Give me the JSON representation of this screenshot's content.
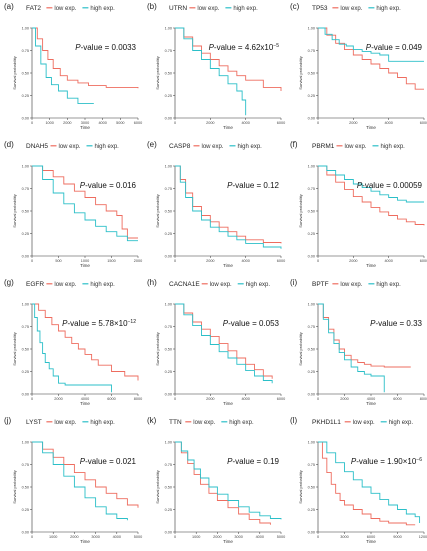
{
  "legend": {
    "low": "low exp.",
    "high": "high exp."
  },
  "colors": {
    "low": "#ee6c5f",
    "high": "#2bbfc8",
    "axis": "#333333"
  },
  "chart_data": [
    {
      "type": "line",
      "panel": "(a)",
      "gene": "FAT2",
      "pvalue": {
        "label": "P",
        "text": "-value = 0.0033"
      },
      "xlabel": "Time",
      "ylabel": "Survival probability",
      "xlim": [
        0,
        6000
      ],
      "ylim": [
        0,
        1
      ],
      "xticks": [
        "0",
        "1000",
        "2000",
        "3000",
        "4000",
        "5000",
        "6000"
      ],
      "yticks": [
        "0.00",
        "0.25",
        "0.50",
        "0.75",
        "1.00"
      ],
      "series": [
        {
          "group": "low",
          "x": [
            0,
            300,
            600,
            900,
            1200,
            1600,
            2000,
            2600,
            3200,
            4200,
            6000
          ],
          "y": [
            1,
            0.88,
            0.75,
            0.65,
            0.55,
            0.47,
            0.42,
            0.39,
            0.36,
            0.34,
            0.33
          ]
        },
        {
          "group": "high",
          "x": [
            0,
            200,
            500,
            800,
            1100,
            1500,
            2000,
            2600,
            3500
          ],
          "y": [
            1,
            0.8,
            0.6,
            0.45,
            0.37,
            0.3,
            0.22,
            0.16,
            0.16
          ]
        }
      ]
    },
    {
      "type": "line",
      "panel": "(b)",
      "gene": "UTRN",
      "pvalue": {
        "label": "P",
        "text": "-value = 4.62x10",
        "sup": "−5"
      },
      "xlabel": "Time",
      "ylabel": "Survival probability",
      "xlim": [
        0,
        6000
      ],
      "ylim": [
        0,
        1
      ],
      "xticks": [
        "0",
        "2000",
        "4000",
        "6000"
      ],
      "yticks": [
        "0.00",
        "0.25",
        "0.50",
        "0.75",
        "1.00"
      ],
      "series": [
        {
          "group": "low",
          "x": [
            0,
            500,
            1000,
            1500,
            2000,
            2500,
            3000,
            3500,
            4000,
            5000,
            6000
          ],
          "y": [
            1,
            0.9,
            0.8,
            0.72,
            0.65,
            0.58,
            0.52,
            0.47,
            0.42,
            0.34,
            0.3
          ]
        },
        {
          "group": "high",
          "x": [
            0,
            500,
            1000,
            1500,
            2000,
            2500,
            3000,
            3500,
            3800,
            4000,
            4000
          ],
          "y": [
            1,
            0.88,
            0.75,
            0.65,
            0.55,
            0.47,
            0.38,
            0.3,
            0.2,
            0.15,
            0.03
          ]
        }
      ]
    },
    {
      "type": "line",
      "panel": "(c)",
      "gene": "TP53",
      "pvalue": {
        "label": "P",
        "text": "-value = 0.049"
      },
      "xlabel": "Time",
      "ylabel": "Survival probability",
      "xlim": [
        0,
        6000
      ],
      "ylim": [
        0,
        1
      ],
      "xticks": [
        "0",
        "2000",
        "4000",
        "6000"
      ],
      "yticks": [
        "0.00",
        "0.25",
        "0.50",
        "0.75",
        "1.00"
      ],
      "series": [
        {
          "group": "low",
          "x": [
            0,
            500,
            1000,
            1500,
            2000,
            2500,
            3000,
            3500,
            4000,
            4500,
            5000,
            5500,
            6000
          ],
          "y": [
            1,
            0.92,
            0.83,
            0.76,
            0.7,
            0.65,
            0.6,
            0.55,
            0.5,
            0.45,
            0.38,
            0.32,
            0.32
          ]
        },
        {
          "group": "high",
          "x": [
            0,
            400,
            800,
            1200,
            1600,
            2000,
            2500,
            3000,
            3500,
            4000,
            6000
          ],
          "y": [
            1,
            0.93,
            0.87,
            0.82,
            0.8,
            0.76,
            0.74,
            0.72,
            0.7,
            0.63,
            0.63
          ]
        }
      ]
    },
    {
      "type": "line",
      "panel": "(d)",
      "gene": "DNAH5",
      "pvalue": {
        "label": "P",
        "text": "-value = 0.016"
      },
      "xlabel": "Time",
      "ylabel": "Survival probability",
      "xlim": [
        0,
        2000
      ],
      "ylim": [
        0,
        1
      ],
      "xticks": [
        "0",
        "500",
        "1000",
        "1500",
        "2000"
      ],
      "yticks": [
        "0.00",
        "0.25",
        "0.50",
        "0.75",
        "1.00"
      ],
      "series": [
        {
          "group": "low",
          "x": [
            0,
            200,
            400,
            600,
            800,
            1000,
            1200,
            1400,
            1600,
            1700,
            1800,
            2000
          ],
          "y": [
            1,
            0.95,
            0.88,
            0.8,
            0.72,
            0.65,
            0.57,
            0.5,
            0.45,
            0.3,
            0.2,
            0.2
          ]
        },
        {
          "group": "high",
          "x": [
            0,
            200,
            400,
            600,
            800,
            1000,
            1200,
            1400,
            1600,
            1800,
            2000
          ],
          "y": [
            1,
            0.85,
            0.7,
            0.58,
            0.48,
            0.4,
            0.33,
            0.27,
            0.22,
            0.17,
            0.17
          ]
        }
      ]
    },
    {
      "type": "line",
      "panel": "(e)",
      "gene": "CASP8",
      "pvalue": {
        "label": "P",
        "text": "-value = 0.12"
      },
      "xlabel": "Time",
      "ylabel": "Survival probability",
      "xlim": [
        0,
        6000
      ],
      "ylim": [
        0,
        1
      ],
      "xticks": [
        "0",
        "2000",
        "4000",
        "6000"
      ],
      "yticks": [
        "0.00",
        "0.25",
        "0.50",
        "0.75",
        "1.00"
      ],
      "series": [
        {
          "group": "low",
          "x": [
            0,
            300,
            600,
            1000,
            1500,
            2000,
            2500,
            3000,
            3500,
            4000,
            5000,
            6000
          ],
          "y": [
            1,
            0.85,
            0.7,
            0.55,
            0.45,
            0.38,
            0.32,
            0.27,
            0.22,
            0.18,
            0.15,
            0.14
          ]
        },
        {
          "group": "high",
          "x": [
            0,
            300,
            600,
            1000,
            1500,
            2000,
            2500,
            3000,
            3500,
            4000,
            5000,
            6000
          ],
          "y": [
            1,
            0.82,
            0.65,
            0.5,
            0.4,
            0.32,
            0.27,
            0.22,
            0.18,
            0.14,
            0.1,
            0.08
          ]
        }
      ]
    },
    {
      "type": "line",
      "panel": "(f)",
      "gene": "PBRM1",
      "pvalue": {
        "label": "P",
        "text": "-value = 0.00059"
      },
      "xlabel": "Time",
      "ylabel": "Survival probability",
      "xlim": [
        0,
        6000
      ],
      "ylim": [
        0,
        1
      ],
      "xticks": [
        "0",
        "2000",
        "4000",
        "6000"
      ],
      "yticks": [
        "0.00",
        "0.25",
        "0.50",
        "0.75",
        "1.00"
      ],
      "series": [
        {
          "group": "low",
          "x": [
            0,
            500,
            1000,
            1500,
            2000,
            2500,
            3000,
            3500,
            4000,
            4500,
            5000,
            5500,
            6000
          ],
          "y": [
            1,
            0.9,
            0.82,
            0.74,
            0.66,
            0.6,
            0.54,
            0.49,
            0.45,
            0.41,
            0.38,
            0.35,
            0.34
          ]
        },
        {
          "group": "high",
          "x": [
            0,
            500,
            1000,
            1500,
            2000,
            2500,
            3000,
            3500,
            4000,
            4500,
            5000,
            6000
          ],
          "y": [
            1,
            0.95,
            0.9,
            0.85,
            0.8,
            0.76,
            0.72,
            0.68,
            0.65,
            0.62,
            0.6,
            0.6
          ]
        }
      ]
    },
    {
      "type": "line",
      "panel": "(g)",
      "gene": "EGFR",
      "pvalue": {
        "label": "P",
        "text": "-value = 5.78×10",
        "sup": "−12"
      },
      "xlabel": "Time",
      "ylabel": "Survival probability",
      "xlim": [
        0,
        8000
      ],
      "ylim": [
        0,
        1
      ],
      "xticks": [
        "0",
        "2000",
        "4000",
        "6000",
        "8000"
      ],
      "yticks": [
        "0.00",
        "0.25",
        "0.50",
        "0.75",
        "1.00"
      ],
      "series": [
        {
          "group": "low",
          "x": [
            0,
            500,
            1000,
            1500,
            2000,
            2500,
            3000,
            3500,
            4000,
            4500,
            5000,
            6000,
            7000,
            8000
          ],
          "y": [
            1,
            0.93,
            0.85,
            0.77,
            0.7,
            0.63,
            0.56,
            0.5,
            0.44,
            0.38,
            0.32,
            0.25,
            0.2,
            0.15
          ]
        },
        {
          "group": "high",
          "x": [
            0,
            200,
            400,
            600,
            800,
            1000,
            1300,
            1600,
            2000,
            2500,
            6000,
            6000
          ],
          "y": [
            1,
            0.85,
            0.7,
            0.57,
            0.45,
            0.35,
            0.28,
            0.2,
            0.12,
            0.1,
            0.1,
            0.02
          ]
        }
      ]
    },
    {
      "type": "line",
      "panel": "(h)",
      "gene": "CACNA1E",
      "pvalue": {
        "label": "P",
        "text": "-value = 0.053"
      },
      "xlabel": "Time",
      "ylabel": "Survival probability",
      "xlim": [
        0,
        6000
      ],
      "ylim": [
        0,
        1
      ],
      "xticks": [
        "0",
        "2000",
        "4000",
        "6000"
      ],
      "yticks": [
        "0.00",
        "0.25",
        "0.50",
        "0.75",
        "1.00"
      ],
      "series": [
        {
          "group": "low",
          "x": [
            0,
            500,
            1000,
            1500,
            2000,
            2500,
            3000,
            3500,
            4000,
            4500,
            5000,
            5500
          ],
          "y": [
            1,
            0.9,
            0.8,
            0.72,
            0.64,
            0.56,
            0.48,
            0.4,
            0.33,
            0.27,
            0.2,
            0.17
          ]
        },
        {
          "group": "high",
          "x": [
            0,
            500,
            1000,
            1500,
            2000,
            2500,
            3000,
            3500,
            4000,
            4500,
            5000,
            5500
          ],
          "y": [
            1,
            0.88,
            0.76,
            0.65,
            0.55,
            0.47,
            0.4,
            0.33,
            0.26,
            0.2,
            0.15,
            0.12
          ]
        }
      ]
    },
    {
      "type": "line",
      "panel": "(i)",
      "gene": "BPTF",
      "pvalue": {
        "label": "P",
        "text": "-value = 0.33"
      },
      "xlabel": "Time",
      "ylabel": "Survival probability",
      "xlim": [
        0,
        8000
      ],
      "ylim": [
        0,
        1
      ],
      "xticks": [
        "0",
        "2000",
        "4000",
        "6000",
        "8000"
      ],
      "yticks": [
        "0.00",
        "0.25",
        "0.50",
        "0.75",
        "1.00"
      ],
      "series": [
        {
          "group": "low",
          "x": [
            0,
            400,
            800,
            1200,
            1600,
            2000,
            2500,
            3000,
            3500,
            4000,
            5000,
            6000,
            7000
          ],
          "y": [
            1,
            0.85,
            0.72,
            0.6,
            0.5,
            0.43,
            0.38,
            0.35,
            0.33,
            0.31,
            0.3,
            0.3,
            0.3
          ]
        },
        {
          "group": "high",
          "x": [
            0,
            400,
            800,
            1200,
            1600,
            2000,
            2500,
            3000,
            3500,
            4000,
            5000,
            5000
          ],
          "y": [
            1,
            0.83,
            0.68,
            0.56,
            0.46,
            0.38,
            0.3,
            0.25,
            0.22,
            0.2,
            0.18,
            0.02
          ]
        }
      ]
    },
    {
      "type": "line",
      "panel": "(j)",
      "gene": "LYST",
      "pvalue": {
        "label": "P",
        "text": "-value = 0.021"
      },
      "xlabel": "Time",
      "ylabel": "Survival probability",
      "xlim": [
        0,
        5000
      ],
      "ylim": [
        0,
        1
      ],
      "xticks": [
        "0",
        "1000",
        "2000",
        "3000",
        "4000",
        "5000"
      ],
      "yticks": [
        "0.00",
        "0.25",
        "0.50",
        "0.75",
        "1.00"
      ],
      "series": [
        {
          "group": "low",
          "x": [
            0,
            500,
            1000,
            1500,
            2000,
            2500,
            3000,
            3500,
            4000,
            4500,
            5000
          ],
          "y": [
            1,
            0.92,
            0.83,
            0.75,
            0.66,
            0.58,
            0.5,
            0.43,
            0.37,
            0.3,
            0.27
          ]
        },
        {
          "group": "high",
          "x": [
            0,
            500,
            1000,
            1500,
            2000,
            2500,
            3000,
            3500,
            4000,
            4500
          ],
          "y": [
            1,
            0.88,
            0.75,
            0.62,
            0.5,
            0.38,
            0.28,
            0.2,
            0.15,
            0.13
          ]
        }
      ]
    },
    {
      "type": "line",
      "panel": "(k)",
      "gene": "TTN",
      "pvalue": {
        "label": "P",
        "text": "-value = 0.19"
      },
      "xlabel": "Time",
      "ylabel": "Survival probability",
      "xlim": [
        0,
        5000
      ],
      "ylim": [
        0,
        1
      ],
      "xticks": [
        "0",
        "1000",
        "2000",
        "3000",
        "4000",
        "5000"
      ],
      "yticks": [
        "0.00",
        "0.25",
        "0.50",
        "0.75",
        "1.00"
      ],
      "series": [
        {
          "group": "low",
          "x": [
            0,
            300,
            600,
            900,
            1200,
            1600,
            2000,
            2500,
            3000,
            3500,
            4000,
            4500
          ],
          "y": [
            1,
            0.88,
            0.76,
            0.64,
            0.53,
            0.43,
            0.35,
            0.27,
            0.2,
            0.14,
            0.1,
            0.08
          ]
        },
        {
          "group": "high",
          "x": [
            0,
            300,
            600,
            900,
            1200,
            1600,
            2000,
            2500,
            3000,
            3500,
            4000,
            4500,
            5000
          ],
          "y": [
            1,
            0.9,
            0.8,
            0.7,
            0.6,
            0.5,
            0.42,
            0.35,
            0.28,
            0.22,
            0.18,
            0.15,
            0.14
          ]
        }
      ]
    },
    {
      "type": "line",
      "panel": "(l)",
      "gene": "PKHD1L1",
      "pvalue": {
        "label": "P",
        "text": "-value = 1.90×10",
        "sup": "−6"
      },
      "xlabel": "Time",
      "ylabel": "Survival probability",
      "xlim": [
        0,
        12000
      ],
      "ylim": [
        0,
        1
      ],
      "xticks": [
        "0",
        "3000",
        "6000",
        "9000",
        "12000"
      ],
      "yticks": [
        "0.00",
        "0.25",
        "0.50",
        "0.75",
        "1.00"
      ],
      "series": [
        {
          "group": "low",
          "x": [
            0,
            500,
            1000,
            1500,
            2000,
            2500,
            3000,
            4000,
            5000,
            6000,
            7000,
            8000,
            10000,
            11000
          ],
          "y": [
            1,
            0.82,
            0.66,
            0.53,
            0.43,
            0.35,
            0.3,
            0.25,
            0.2,
            0.15,
            0.12,
            0.1,
            0.08,
            0.08
          ]
        },
        {
          "group": "high",
          "x": [
            0,
            1000,
            2000,
            3000,
            4000,
            5000,
            6000,
            7000,
            8000,
            9000,
            10000,
            11000,
            11500
          ],
          "y": [
            1,
            0.88,
            0.77,
            0.67,
            0.58,
            0.5,
            0.43,
            0.36,
            0.3,
            0.25,
            0.2,
            0.17,
            0.1
          ]
        }
      ]
    }
  ]
}
